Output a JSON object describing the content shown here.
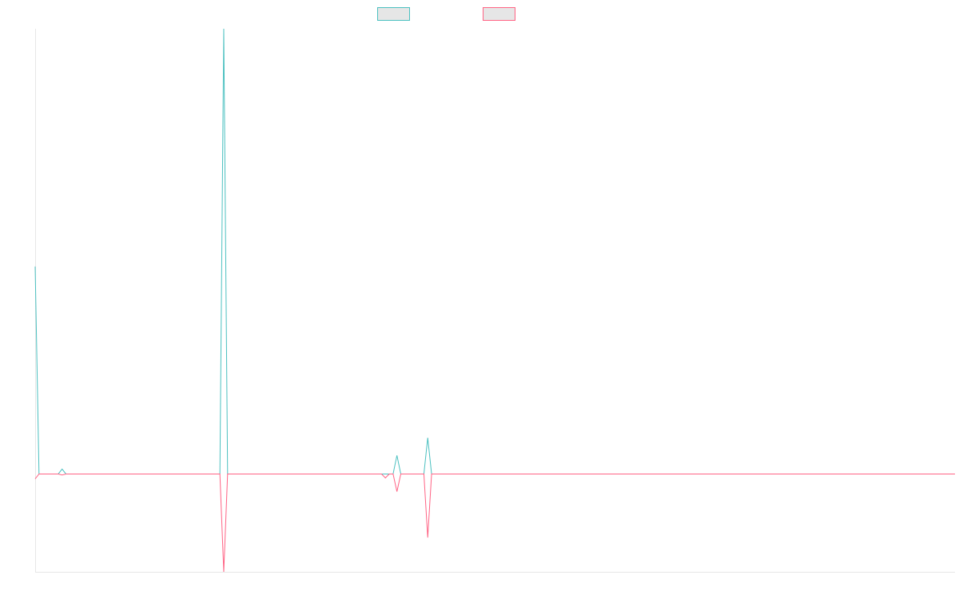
{
  "chart_data": {
    "type": "line",
    "title": "",
    "xlabel": "",
    "ylabel": "",
    "grid": false,
    "legend_placement": "top-center",
    "ylim": [
      -100,
      455
    ],
    "series": [
      {
        "color": "#4bc0c0",
        "legend_fill": "#e6e6e6",
        "points": [
          {
            "x": 0,
            "y": 212
          },
          {
            "x": 1,
            "y": 0
          },
          {
            "x": 6,
            "y": 0
          },
          {
            "x": 7,
            "y": 5
          },
          {
            "x": 8,
            "y": 0
          },
          {
            "x": 48,
            "y": 0
          },
          {
            "x": 49,
            "y": 455
          },
          {
            "x": 50,
            "y": 0
          },
          {
            "x": 90,
            "y": 0
          },
          {
            "x": 91,
            "y": 0
          },
          {
            "x": 92,
            "y": 0
          },
          {
            "x": 93,
            "y": 0
          },
          {
            "x": 94,
            "y": 19
          },
          {
            "x": 95,
            "y": 0
          },
          {
            "x": 101,
            "y": 0
          },
          {
            "x": 102,
            "y": 37
          },
          {
            "x": 103,
            "y": 0
          },
          {
            "x": 239,
            "y": 0
          }
        ]
      },
      {
        "color": "#ff6384",
        "legend_fill": "#e6e6e6",
        "points": [
          {
            "x": 0,
            "y": -5
          },
          {
            "x": 1,
            "y": 0
          },
          {
            "x": 6,
            "y": 0
          },
          {
            "x": 7,
            "y": -1
          },
          {
            "x": 8,
            "y": 0
          },
          {
            "x": 48,
            "y": 0
          },
          {
            "x": 49,
            "y": -100
          },
          {
            "x": 50,
            "y": 0
          },
          {
            "x": 89,
            "y": 0
          },
          {
            "x": 90,
            "y": 0
          },
          {
            "x": 91,
            "y": -4
          },
          {
            "x": 92,
            "y": 0
          },
          {
            "x": 93,
            "y": 0
          },
          {
            "x": 94,
            "y": -18
          },
          {
            "x": 95,
            "y": 0
          },
          {
            "x": 101,
            "y": 0
          },
          {
            "x": 102,
            "y": -65
          },
          {
            "x": 103,
            "y": 0
          },
          {
            "x": 239,
            "y": 0
          }
        ]
      }
    ]
  }
}
